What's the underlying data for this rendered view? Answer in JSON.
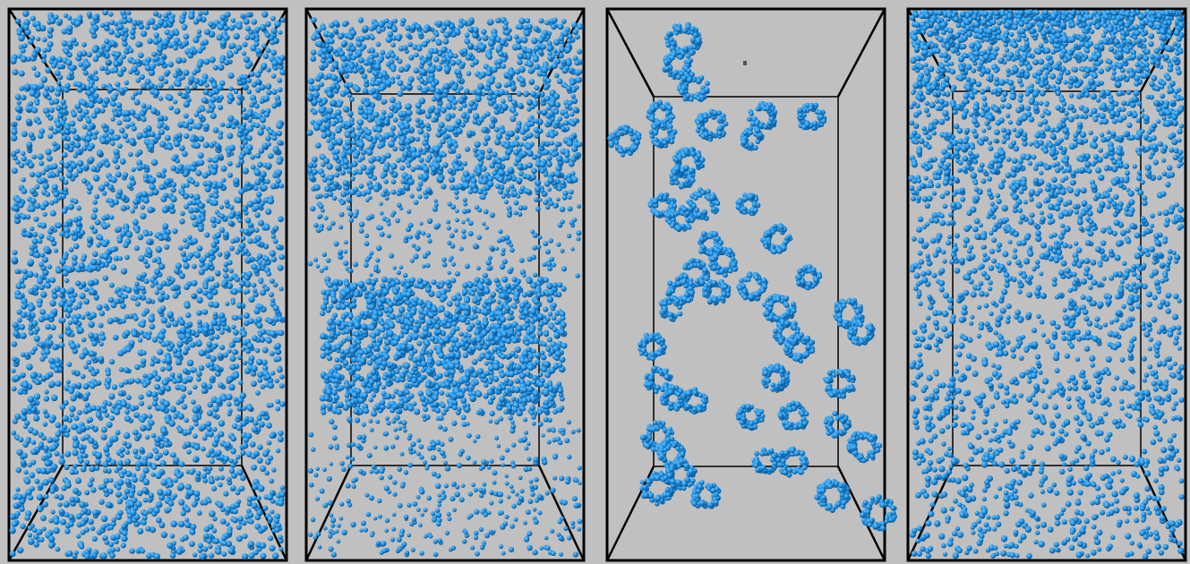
{
  "figure": {
    "background_color": "#c0c0c0",
    "particle_color": "#1e90e0",
    "particle_highlight_color": "#6fc3ff",
    "particle_shadow_color": "#0a4f8a",
    "frame_color": "#000000",
    "panels": [
      {
        "id": "panel-1",
        "distribution": "uniform-dense"
      },
      {
        "id": "panel-2",
        "distribution": "two-layers"
      },
      {
        "id": "panel-3",
        "distribution": "spherical-clusters"
      },
      {
        "id": "panel-4",
        "distribution": "top-weighted-gradient"
      }
    ]
  }
}
